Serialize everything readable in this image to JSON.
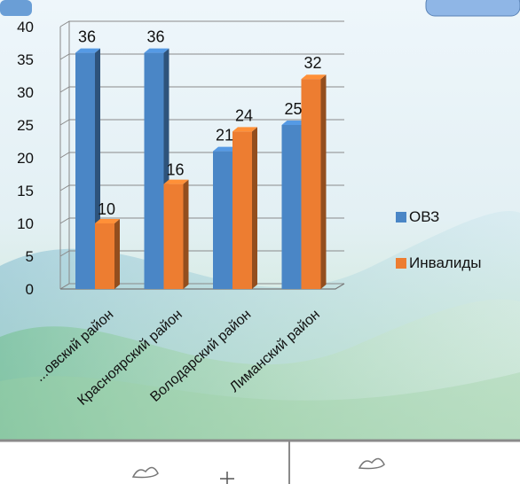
{
  "chart_data": {
    "type": "bar",
    "categories": [
      "...овский район",
      "Краснoярский район",
      "Володарский район",
      "Лиманский район"
    ],
    "series": [
      {
        "name": "ОВЗ",
        "values": [
          36,
          36,
          21,
          25
        ],
        "color": "#4a86c6"
      },
      {
        "name": "Инвалиды",
        "values": [
          10,
          16,
          24,
          32
        ],
        "color": "#ed7d31"
      }
    ],
    "ylim": [
      0,
      40
    ],
    "yticks": [
      "0",
      "5",
      "10",
      "15",
      "20",
      "25",
      "30",
      "35",
      "40"
    ],
    "grid": true,
    "legend_position": "right",
    "style": "3d-column"
  }
}
